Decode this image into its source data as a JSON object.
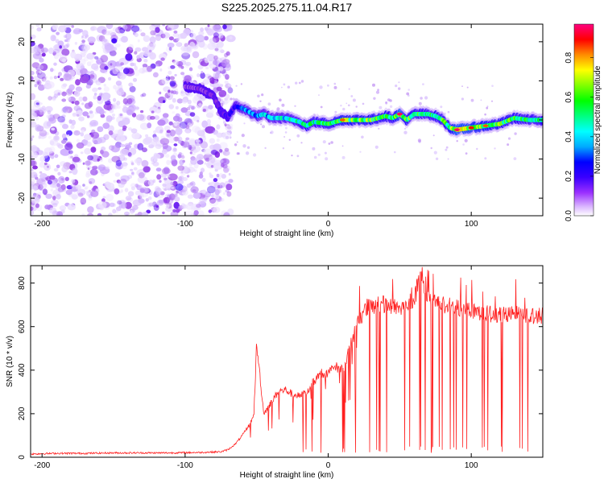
{
  "chart_data": [
    {
      "id": "spectrogram",
      "type": "heatmap",
      "title": "S225.2025.275.11.04.R17",
      "xlabel": "Height of straight line (km)",
      "ylabel": "Frequency (Hz)",
      "xlim": [
        -208,
        150
      ],
      "ylim": [
        -24.5,
        24.5
      ],
      "xticks": [
        -200,
        -100,
        0,
        100
      ],
      "xtick_labels": [
        "-200",
        "-100",
        "0",
        "100"
      ],
      "yticks": [
        -20,
        -10,
        0,
        10,
        20
      ],
      "ytick_labels": [
        "-20",
        "-10",
        "0",
        "10",
        "20"
      ],
      "colorbar": {
        "label": "Normalized spectral amplitude",
        "range": [
          0,
          0.97
        ],
        "ticks": [
          0.0,
          0.2,
          0.4,
          0.6,
          0.8
        ],
        "tick_labels": [
          "0.0",
          "0.2",
          "0.4",
          "0.6",
          "0.8"
        ],
        "colormap": [
          "#ffffff",
          "#c9a6ff",
          "#8a2be2",
          "#3a00ff",
          "#0000ff",
          "#00bfff",
          "#00ffff",
          "#00ff80",
          "#00ff00",
          "#b0ff00",
          "#ffff00",
          "#ff8c00",
          "#ff0000",
          "#ff0080"
        ]
      },
      "noise_region": {
        "x_range": [
          -208,
          -68
        ],
        "freq_range": [
          -24.5,
          24.5
        ],
        "amplitude_range": [
          0.0,
          0.22
        ]
      },
      "ridge": {
        "description": "peak frequency vs height",
        "x": [
          -100,
          -90,
          -80,
          -75,
          -70,
          -65,
          -60,
          -55,
          -50,
          -45,
          -40,
          -30,
          -20,
          -15,
          -10,
          0,
          10,
          20,
          30,
          40,
          45,
          50,
          55,
          60,
          65,
          70,
          75,
          80,
          85,
          90,
          100,
          110,
          120,
          130,
          140,
          150
        ],
        "freq": [
          8.5,
          8.0,
          6.0,
          2.0,
          0.8,
          3.5,
          3.0,
          2.0,
          1.0,
          1.5,
          0.5,
          0.5,
          -0.5,
          -1.5,
          -0.5,
          -1.0,
          0.0,
          0.0,
          0.0,
          1.0,
          0.5,
          1.5,
          0.0,
          1.5,
          1.5,
          1.5,
          1.0,
          0.0,
          -2.0,
          -2.5,
          -2.0,
          -1.5,
          -1.0,
          0.5,
          0.0,
          0.0
        ],
        "amplitude": [
          0.2,
          0.22,
          0.22,
          0.25,
          0.3,
          0.35,
          0.45,
          0.5,
          0.5,
          0.55,
          0.55,
          0.6,
          0.65,
          0.75,
          0.7,
          0.75,
          0.85,
          0.8,
          0.8,
          0.75,
          0.7,
          0.95,
          0.8,
          0.75,
          0.7,
          0.7,
          0.7,
          0.75,
          0.8,
          0.95,
          0.9,
          0.85,
          0.8,
          0.75,
          0.7,
          0.7
        ]
      }
    },
    {
      "id": "snr",
      "type": "line",
      "title": "",
      "xlabel": "Height of straight line (km)",
      "ylabel": "SNR (10 * v/v)",
      "xlim": [
        -208,
        150
      ],
      "ylim": [
        0,
        880
      ],
      "xticks": [
        -200,
        -100,
        0,
        100
      ],
      "xtick_labels": [
        "-200",
        "-100",
        "0",
        "100"
      ],
      "yticks": [
        0,
        200,
        400,
        600,
        800
      ],
      "ytick_labels": [
        "0",
        "200",
        "400",
        "600",
        "800"
      ],
      "series": [
        {
          "name": "SNR",
          "color": "#ff2020",
          "x": [
            -208,
            -190,
            -170,
            -150,
            -130,
            -110,
            -90,
            -75,
            -70,
            -65,
            -60,
            -55,
            -52,
            -50,
            -45,
            -40,
            -35,
            -30,
            -25,
            -20,
            -15,
            -10,
            -5,
            0,
            5,
            10,
            15,
            20,
            25,
            30,
            40,
            50,
            60,
            65,
            70,
            80,
            90,
            100,
            110,
            120,
            130,
            140,
            150
          ],
          "y": [
            15,
            18,
            18,
            20,
            20,
            20,
            22,
            25,
            35,
            60,
            100,
            150,
            190,
            520,
            200,
            250,
            300,
            310,
            290,
            280,
            300,
            350,
            390,
            380,
            420,
            400,
            500,
            600,
            680,
            700,
            700,
            690,
            720,
            850,
            720,
            700,
            690,
            680,
            660,
            650,
            660,
            650,
            650
          ]
        }
      ],
      "dropouts": {
        "x_range": [
          -20,
          145
        ],
        "floor": 20
      }
    }
  ]
}
